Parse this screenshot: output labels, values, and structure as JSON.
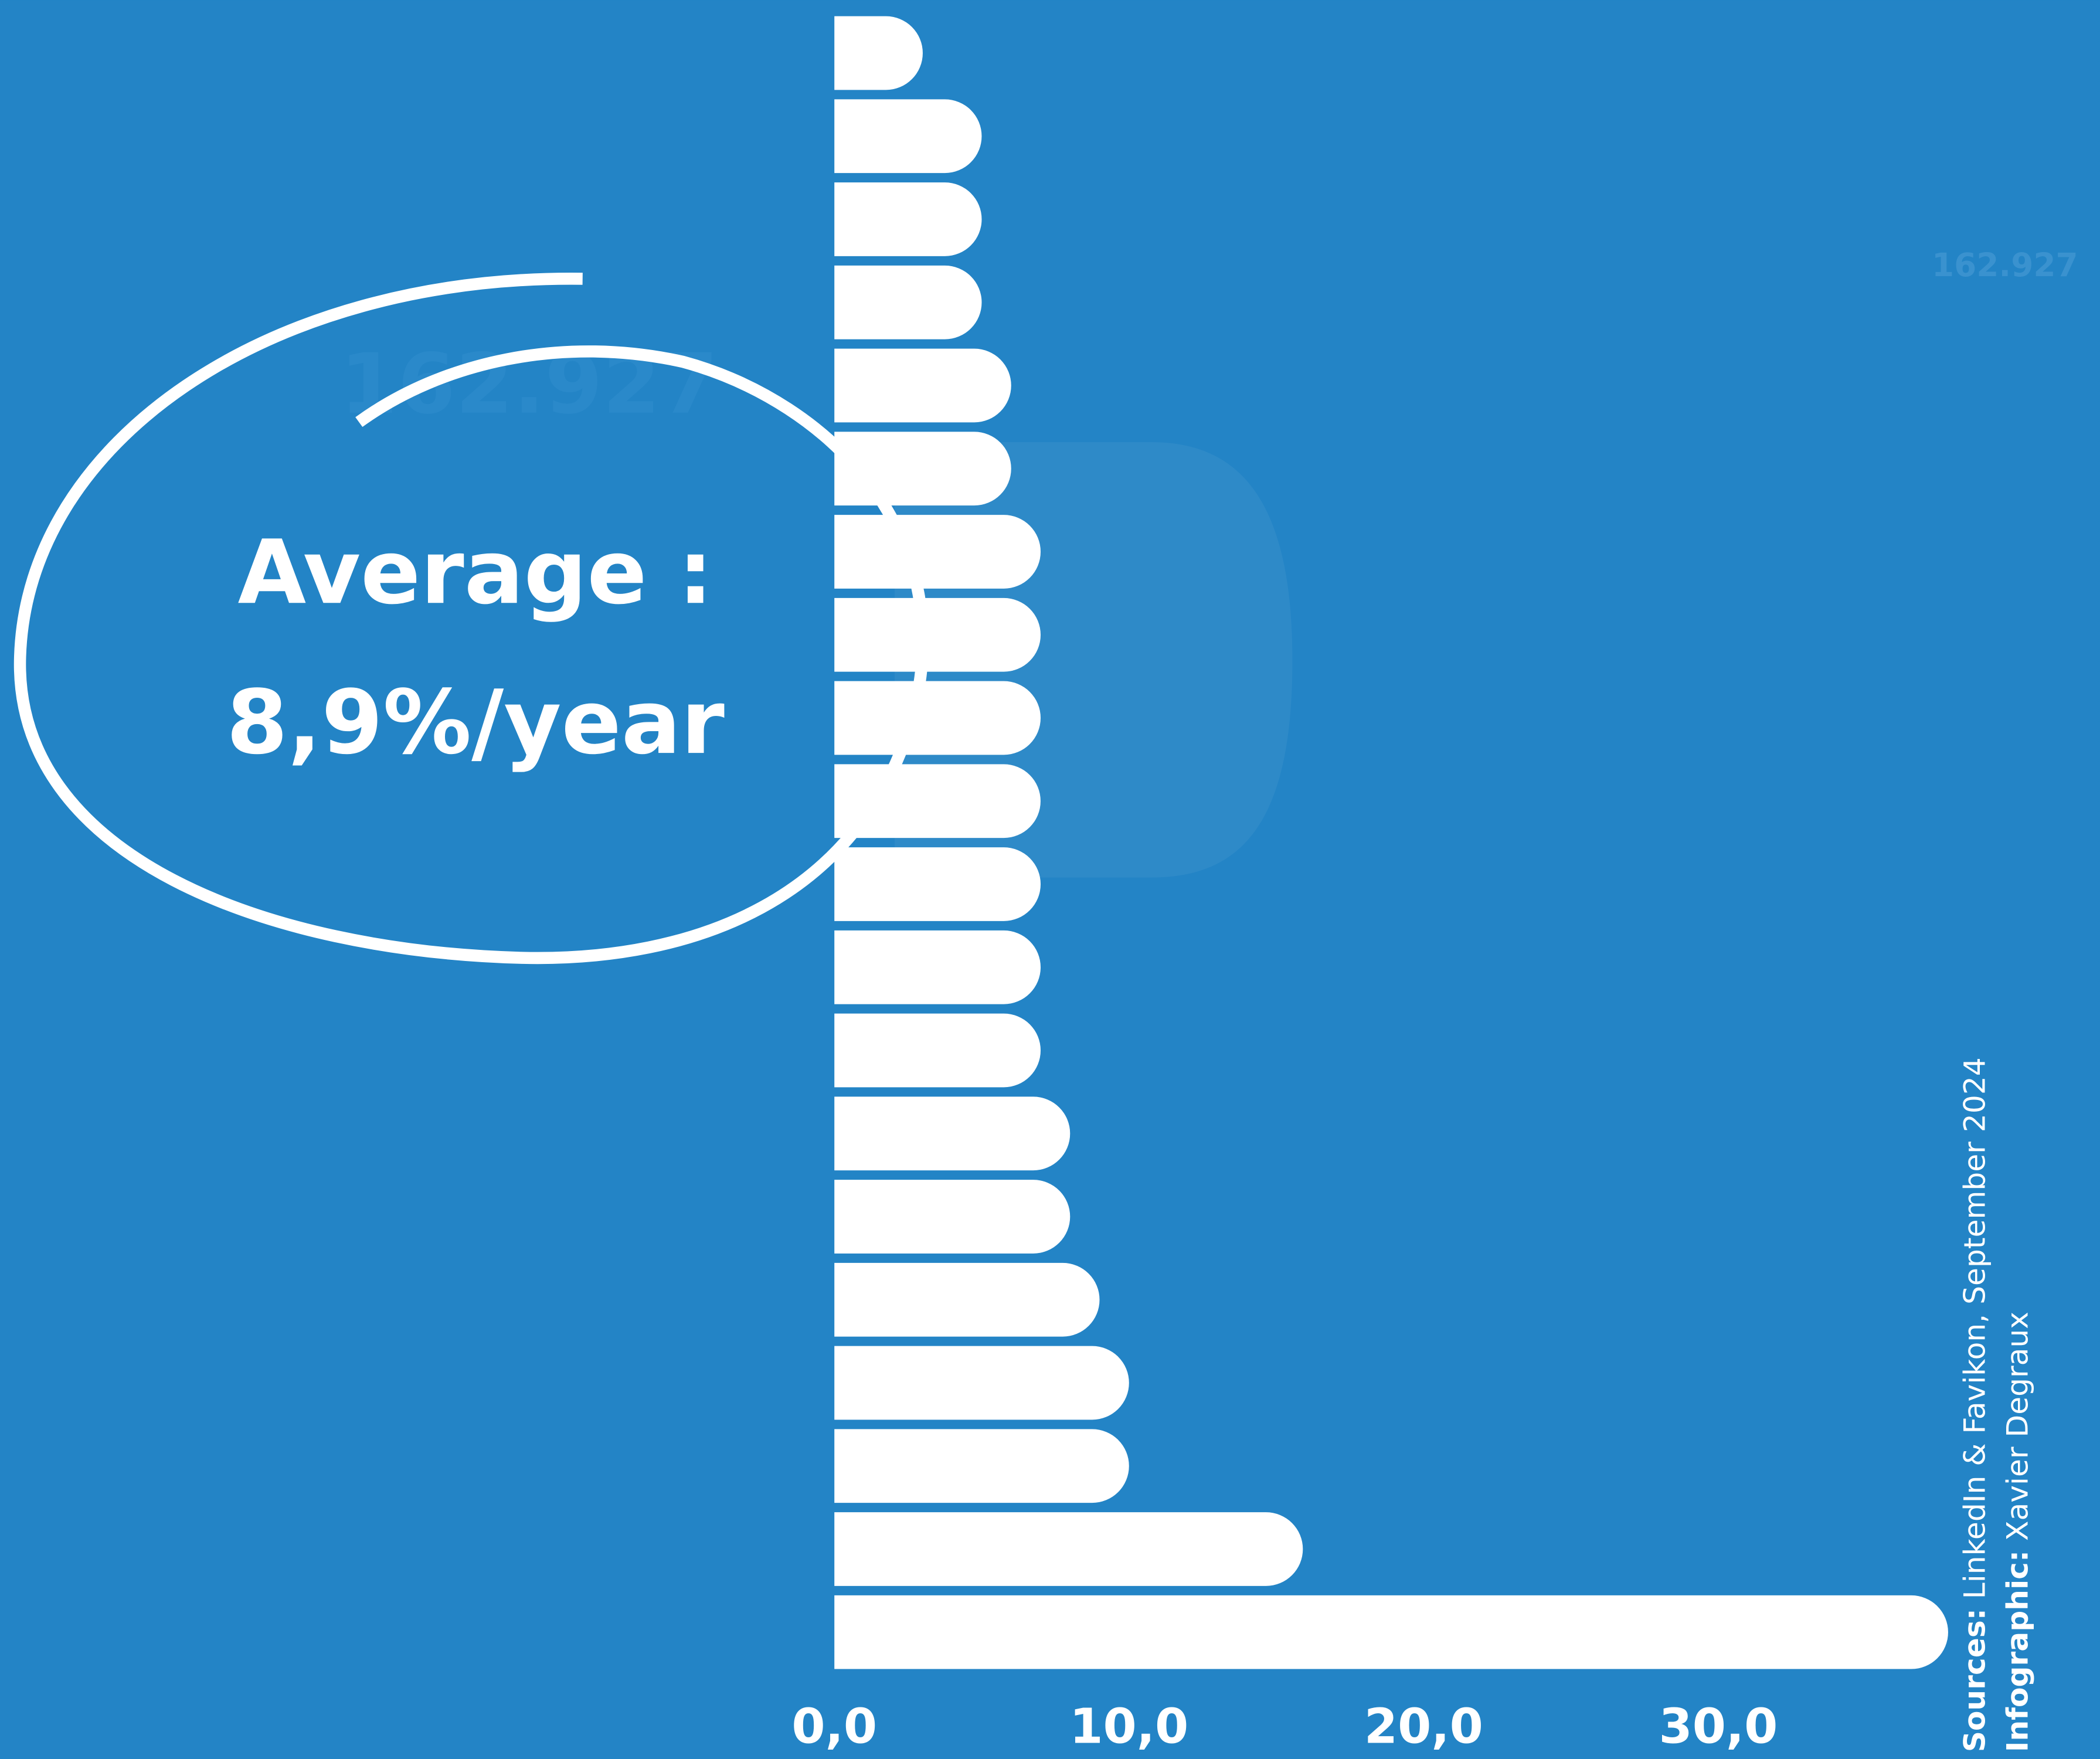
{
  "chart_data": {
    "type": "hbar",
    "values": [
      3.0,
      5.0,
      5.0,
      5.0,
      6.0,
      6.0,
      7.0,
      7.0,
      7.0,
      7.0,
      7.0,
      7.0,
      7.0,
      8.0,
      8.0,
      9.0,
      10.0,
      10.0,
      15.9,
      37.8
    ],
    "color": "#ffffff",
    "xlim": [
      0,
      40
    ],
    "xticks": [
      {
        "value": 0,
        "label": "0,0"
      },
      {
        "value": 10,
        "label": "10,0"
      },
      {
        "value": 20,
        "label": "20,0"
      },
      {
        "value": 30,
        "label": "30,0"
      }
    ],
    "annotation": [
      "Average :",
      "8,9%/year"
    ],
    "watermark": "162.927",
    "sources": {
      "label": "Sources:",
      "text": " LinkedIn & Favikon, September 2024"
    },
    "credit": {
      "label": "Infographic:",
      "text": " Xavier Degraux"
    }
  }
}
